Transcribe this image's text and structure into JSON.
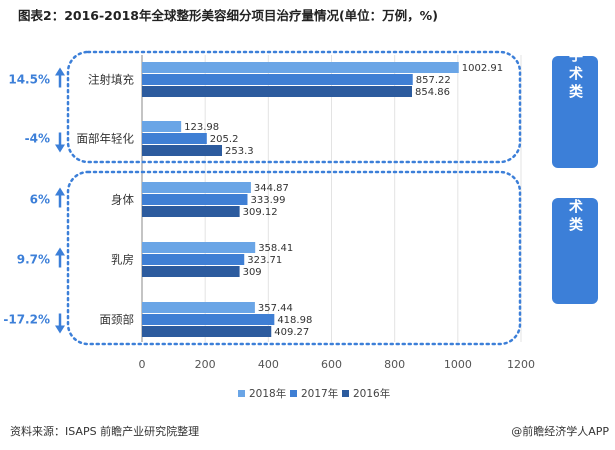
{
  "title": "图表2：2016-2018年全球整形美容细分项目治疗量情况(单位：万例，%)",
  "source": "资料来源：ISAPS 前瞻产业研究院整理",
  "brand": "@前瞻经济学人APP",
  "groups": [
    {
      "label": "非手术类"
    },
    {
      "label": "手术类"
    }
  ],
  "colors": {
    "2018": "#6aa5e6",
    "2017": "#3f7fd4",
    "2016": "#2c5b9e",
    "accent": "#3c7fd8"
  },
  "chart_data": {
    "type": "bar",
    "orientation": "horizontal",
    "title": "图表2：2016-2018年全球整形美容细分项目治疗量情况(单位：万例，%)",
    "categories": [
      "注射填充",
      "面部年轻化",
      "身体",
      "乳房",
      "面颈部"
    ],
    "series": [
      {
        "name": "2018年",
        "values": [
          1002.91,
          123.98,
          344.87,
          358.41,
          357.44
        ]
      },
      {
        "name": "2017年",
        "values": [
          857.22,
          205.2,
          333.99,
          323.71,
          418.98
        ]
      },
      {
        "name": "2016年",
        "values": [
          854.86,
          253.3,
          309.12,
          309,
          409.27
        ]
      }
    ],
    "data_labels": [
      [
        "1002.91",
        "123.98",
        "344.87",
        "358.41",
        "357.44"
      ],
      [
        "857.22",
        "205.2",
        "333.99",
        "323.71",
        "418.98"
      ],
      [
        "854.86",
        "253.3",
        "309.12",
        "309",
        "409.27"
      ]
    ],
    "growth": [
      {
        "text": "14.5%",
        "direction": "up"
      },
      {
        "text": "-4%",
        "direction": "down"
      },
      {
        "text": "6%",
        "direction": "up"
      },
      {
        "text": "9.7%",
        "direction": "up"
      },
      {
        "text": "-17.2%",
        "direction": "down"
      }
    ],
    "xlim": [
      0,
      1200
    ],
    "xticks": [
      "0",
      "200",
      "400",
      "600",
      "800",
      "1000",
      "1200"
    ],
    "legend_position": "bottom"
  }
}
